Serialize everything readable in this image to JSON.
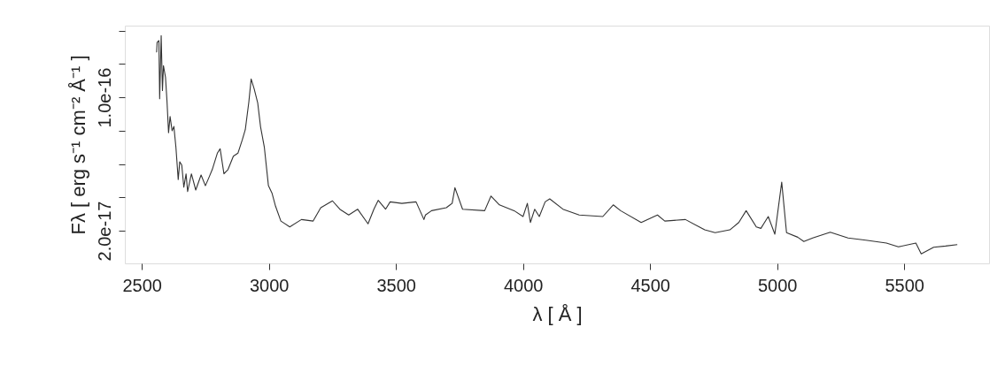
{
  "chart_data": {
    "type": "line",
    "xlabel": "λ [ Å ]",
    "ylabel": "Fλ [ erg s⁻¹ cm⁻² Å⁻¹ ]",
    "x": [
      2558,
      2560,
      2567,
      2570,
      2576,
      2581,
      2585,
      2593,
      2599,
      2605,
      2611,
      2619,
      2626,
      2634,
      2643,
      2649,
      2657,
      2665,
      2674,
      2680,
      2695,
      2712,
      2733,
      2750,
      2765,
      2777,
      2797,
      2808,
      2823,
      2839,
      2860,
      2878,
      2895,
      2907,
      2921,
      2930,
      2942,
      2956,
      2967,
      2982,
      2998,
      3012,
      3026,
      3047,
      3082,
      3128,
      3174,
      3204,
      3250,
      3279,
      3314,
      3349,
      3390,
      3413,
      3430,
      3459,
      3477,
      3523,
      3579,
      3610,
      3616,
      3640,
      3698,
      3721,
      3732,
      3762,
      3849,
      3874,
      3907,
      3965,
      4000,
      4017,
      4029,
      4046,
      4064,
      4087,
      4105,
      4157,
      4221,
      4314,
      4355,
      4384,
      4465,
      4529,
      4558,
      4639,
      4715,
      4756,
      4814,
      4849,
      4878,
      4918,
      4936,
      4965,
      4991,
      5018,
      5037,
      5081,
      5105,
      5140,
      5209,
      5279,
      5349,
      5430,
      5477,
      5546,
      5567,
      5616,
      5663,
      5709
    ],
    "series": [
      {
        "color": "#333333",
        "values": [
          1.27e-16,
          1.33e-16,
          1.34e-16,
          9.91e-17,
          1.37e-16,
          1.04e-16,
          1.19e-16,
          1.12e-16,
          9.73e-17,
          7.88e-17,
          8.85e-17,
          7.99e-17,
          8.25e-17,
          7e-17,
          5.07e-17,
          6.13e-17,
          5.94e-17,
          4.61e-17,
          5.41e-17,
          4.35e-17,
          5.41e-17,
          4.44e-17,
          5.34e-17,
          4.7e-17,
          5.23e-17,
          5.67e-17,
          6.65e-17,
          6.91e-17,
          5.41e-17,
          5.67e-17,
          6.47e-17,
          6.65e-17,
          7.44e-17,
          8.06e-17,
          9.73e-17,
          1.11e-16,
          1.05e-16,
          9.65e-17,
          8.24e-17,
          7e-17,
          4.7e-17,
          4.26e-17,
          3.47e-17,
          2.58e-17,
          2.23e-17,
          2.67e-17,
          2.58e-17,
          3.38e-17,
          3.79e-17,
          3.29e-17,
          2.94e-17,
          3.29e-17,
          2.41e-17,
          3.29e-17,
          3.82e-17,
          3.29e-17,
          3.73e-17,
          3.64e-17,
          3.73e-17,
          2.67e-17,
          2.94e-17,
          3.2e-17,
          3.38e-17,
          3.64e-17,
          4.58e-17,
          3.29e-17,
          3.2e-17,
          4.08e-17,
          3.55e-17,
          3.2e-17,
          2.85e-17,
          3.64e-17,
          2.49e-17,
          3.29e-17,
          2.85e-17,
          3.73e-17,
          3.91e-17,
          3.29e-17,
          2.94e-17,
          2.85e-17,
          3.55e-17,
          3.2e-17,
          2.49e-17,
          2.94e-17,
          2.58e-17,
          2.67e-17,
          2.05e-17,
          1.88e-17,
          2.05e-17,
          2.49e-17,
          3.2e-17,
          2.23e-17,
          2.14e-17,
          2.85e-17,
          1.79e-17,
          4.91e-17,
          1.88e-17,
          1.61e-17,
          1.35e-17,
          1.56e-17,
          1.91e-17,
          1.56e-17,
          1.43e-17,
          1.26e-17,
          1.03e-17,
          1.26e-17,
          6.1e-18,
          1.01e-17,
          1.08e-17,
          1.17e-17
        ]
      }
    ],
    "xlim": [
      2433,
      5834
    ],
    "xticks": [
      2500,
      3000,
      3500,
      4000,
      4500,
      5000,
      5500
    ],
    "ylim": [
      4e-19,
      1.43e-16
    ],
    "yticks": [
      {
        "value": 2e-17,
        "label": "2.0e-17"
      },
      {
        "value": 4e-17,
        "label": null
      },
      {
        "value": 6e-17,
        "label": null
      },
      {
        "value": 8e-17,
        "label": null
      },
      {
        "value": 1e-16,
        "label": "1.0e-16"
      },
      {
        "value": 1.2e-16,
        "label": null
      },
      {
        "value": 1.4e-16,
        "label": null
      }
    ],
    "grid": false,
    "marker": "none",
    "line_style": "solid"
  }
}
